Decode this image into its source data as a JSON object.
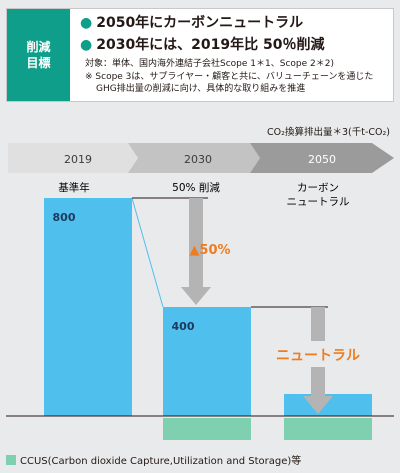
{
  "header": {
    "label_line1": "削減",
    "label_line2": "目標",
    "goal1": "2050年にカーボンニュートラル",
    "goal2": "2030年には、2019年比 50％削減",
    "note1": "対象：単体、国内海外連結子会社Scope 1＊1、Scope 2＊2)",
    "note2": "※ Scope 3は、サプライヤー・顧客と共に、バリューチェーンを通じた",
    "note3": "GHG排出量の削減に向け、具体的な取り組みを推進"
  },
  "unit": "CO₂換算排出量＊3(千t-CO₂)",
  "legend": {
    "label": "CCUS(Carbon dioxide Capture,Utilization and Storage)等"
  },
  "colors": {
    "bar": "#4fbfee",
    "ccus": "#7fcfb1",
    "arrow": "#b4b4b4",
    "highlight": "#ee7d22",
    "bar_text": "#1c3a5e",
    "timeline_light": "#e0e0e0",
    "timeline_mid": "#c3c3c3",
    "timeline_dark": "#9b9b9b"
  },
  "chart_data": {
    "type": "bar",
    "categories": [
      "2019",
      "2030",
      "2050"
    ],
    "category_labels": [
      "基準年",
      "50% 削減",
      "カーボン ニュートラル"
    ],
    "values": [
      800,
      400,
      null
    ],
    "value_labels": [
      "800",
      "400",
      ""
    ],
    "annotations": [
      "▲50%",
      "ニュートラル"
    ],
    "ylim": [
      0,
      1000
    ]
  }
}
